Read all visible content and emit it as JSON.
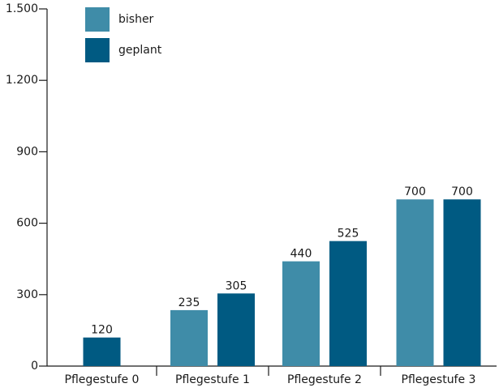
{
  "chart_data": {
    "type": "bar",
    "categories": [
      "Pflegestufe 0",
      "Pflegestufe 1",
      "Pflegestufe 2",
      "Pflegestufe 3"
    ],
    "series": [
      {
        "name": "bisher",
        "color": "#3f8ca8",
        "values": [
          null,
          235,
          440,
          700
        ]
      },
      {
        "name": "geplant",
        "color": "#005a82",
        "values": [
          120,
          305,
          525,
          700
        ]
      }
    ],
    "data_labels": [
      [
        "",
        "235",
        "440",
        "700"
      ],
      [
        "120",
        "305",
        "525",
        "700"
      ]
    ],
    "yticks": [
      0,
      300,
      600,
      900,
      1200,
      1500
    ],
    "ytick_labels": [
      "0",
      "300",
      "600",
      "900",
      "1.200",
      "1.500"
    ],
    "ylim": [
      0,
      1500
    ],
    "title": "",
    "xlabel": "",
    "ylabel": "",
    "grid": false,
    "legend_position": "top-left"
  }
}
